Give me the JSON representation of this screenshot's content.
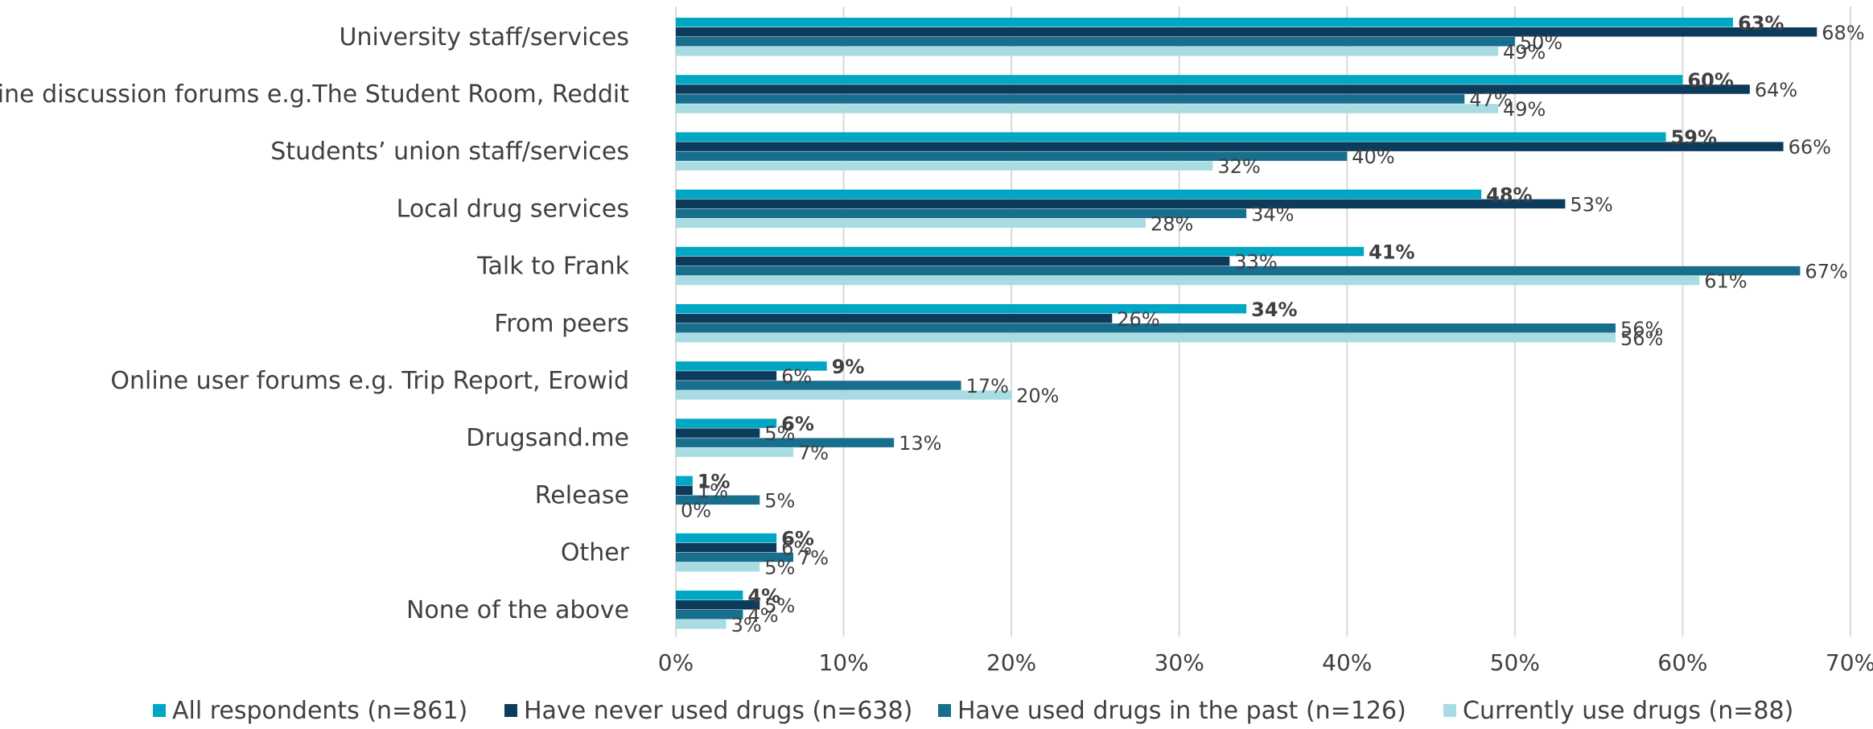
{
  "chart_data": {
    "type": "bar",
    "orientation": "horizontal",
    "categories": [
      "University staff/services",
      "Online discussion forums e.g.The Student Room, Reddit",
      "Students’ union staff/services",
      "Local drug services",
      "Talk to Frank",
      "From peers",
      "Online user forums e.g. Trip Report, Erowid",
      "Drugsand.me",
      "Release",
      "Other",
      "None of the above"
    ],
    "series": [
      {
        "name": "All respondents (n=861)",
        "color": "#00A7C4",
        "bold_labels": true,
        "values": [
          63,
          60,
          59,
          48,
          41,
          34,
          9,
          6,
          1,
          6,
          4
        ]
      },
      {
        "name": "Have never used drugs (n=638)",
        "color": "#0C3B5C",
        "bold_labels": false,
        "values": [
          68,
          64,
          66,
          53,
          33,
          26,
          6,
          5,
          1,
          6,
          5
        ]
      },
      {
        "name": "Have used drugs in the past (n=126)",
        "color": "#176F8D",
        "bold_labels": false,
        "values": [
          50,
          47,
          40,
          34,
          67,
          56,
          17,
          13,
          5,
          7,
          4
        ]
      },
      {
        "name": "Currently use drugs (n=88)",
        "color": "#A8DCE2",
        "bold_labels": false,
        "values": [
          49,
          49,
          32,
          28,
          61,
          56,
          20,
          7,
          0,
          5,
          3
        ]
      }
    ],
    "xlim": [
      0,
      70
    ],
    "xticks": [
      0,
      10,
      20,
      30,
      40,
      50,
      60,
      70
    ],
    "tick_suffix": "%",
    "value_suffix": "%",
    "grid": true,
    "legend_position": "bottom"
  }
}
